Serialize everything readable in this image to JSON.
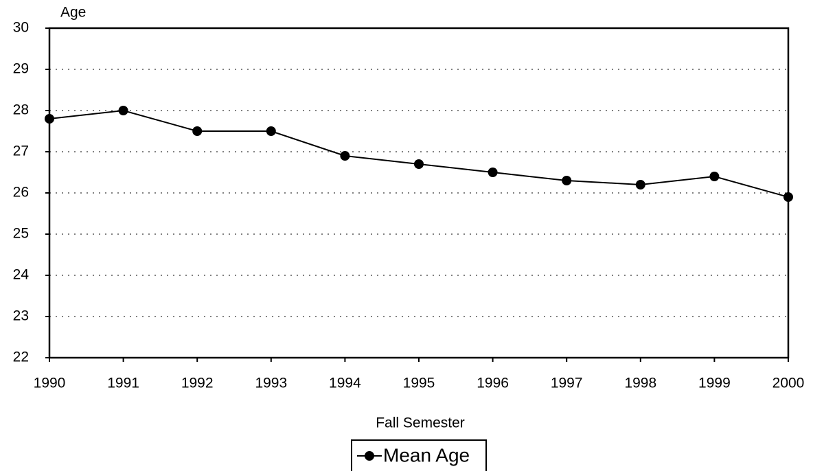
{
  "chart_data": {
    "type": "line",
    "y_label": "Age",
    "x_label": "Fall Semester",
    "x": [
      1990,
      1991,
      1992,
      1993,
      1994,
      1995,
      1996,
      1997,
      1998,
      1999,
      2000
    ],
    "series": [
      {
        "name": "Mean Age",
        "color": "#000000",
        "values": [
          27.8,
          28,
          27.5,
          27.5,
          26.9,
          26.7,
          26.5,
          26.3,
          26.2,
          26.4,
          25.9
        ]
      }
    ],
    "xlim": [
      1990,
      2000
    ],
    "xticks": [
      1990,
      1991,
      1992,
      1993,
      1994,
      1995,
      1996,
      1997,
      1998,
      1999,
      2000
    ],
    "ylim": [
      22,
      30
    ],
    "yticks": [
      22,
      23,
      24,
      25,
      26,
      27,
      28,
      29,
      30
    ],
    "grid": true,
    "legend": "bottom"
  }
}
